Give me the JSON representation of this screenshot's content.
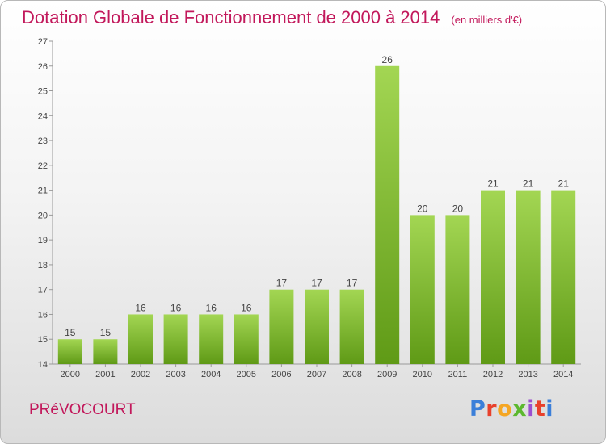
{
  "header": {
    "title": "Dotation Globale de Fonctionnement de 2000 à 2014",
    "subtitle": "(en milliers d'€)"
  },
  "footer": {
    "commune": "PRéVOCOURT",
    "brand": "Proxiti",
    "brand_colors": [
      "#3b7fd9",
      "#e8412c",
      "#f5a623",
      "#5cb82e",
      "#9b4fd0",
      "#e8412c",
      "#3b7fd9"
    ]
  },
  "chart_data": {
    "type": "bar",
    "categories": [
      "2000",
      "2001",
      "2002",
      "2003",
      "2004",
      "2005",
      "2006",
      "2007",
      "2008",
      "2009",
      "2010",
      "2011",
      "2012",
      "2013",
      "2014"
    ],
    "values": [
      15,
      15,
      16,
      16,
      16,
      16,
      17,
      17,
      17,
      26,
      20,
      20,
      21,
      21,
      21
    ],
    "data_labels": [
      "15",
      "15",
      "16",
      "16",
      "16",
      "16",
      "17",
      "17",
      "17",
      "26",
      "20",
      "20",
      "21",
      "21",
      "21"
    ],
    "ylim": [
      14,
      27
    ],
    "yticks": [
      "14",
      "15",
      "16",
      "17",
      "18",
      "19",
      "20",
      "21",
      "22",
      "23",
      "24",
      "25",
      "26",
      "27"
    ],
    "grid": false,
    "bar_color_light": "#a3d653",
    "bar_color_dark": "#5f9a16"
  }
}
